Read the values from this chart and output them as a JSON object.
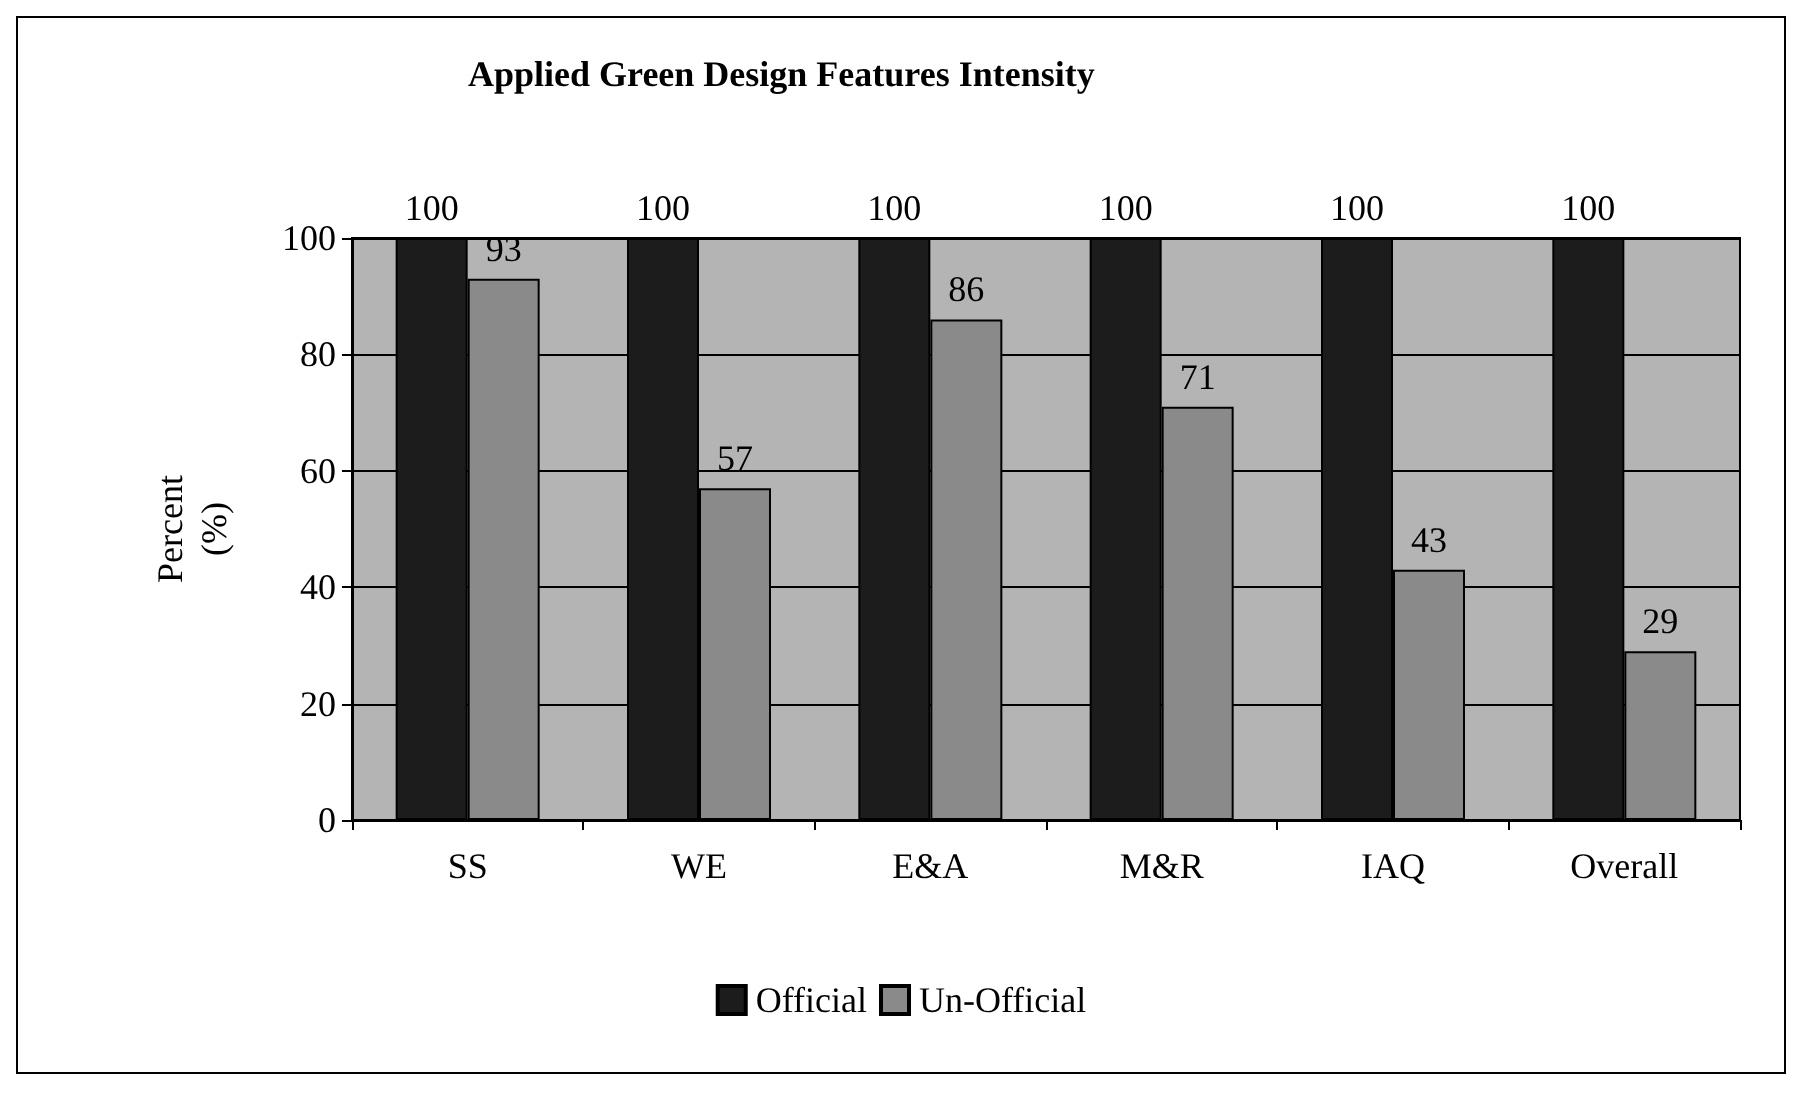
{
  "chart_data": {
    "type": "bar",
    "title": "Applied Green Design Features Intensity",
    "ylabel": "Percent\n(%)",
    "categories": [
      "SS",
      "WE",
      "E&A",
      "M&R",
      "IAQ",
      "Overall"
    ],
    "series": [
      {
        "name": "Official",
        "color": "#1c1c1c",
        "values": [
          100,
          100,
          100,
          100,
          100,
          100
        ]
      },
      {
        "name": "Un-Official",
        "color": "#8a8a8a",
        "values": [
          93,
          57,
          86,
          71,
          43,
          29
        ]
      }
    ],
    "ylim": [
      0,
      100
    ],
    "yticks": [
      0,
      20,
      40,
      60,
      80,
      100
    ],
    "grid": "y",
    "legend": "bottom",
    "data_labels": true
  }
}
